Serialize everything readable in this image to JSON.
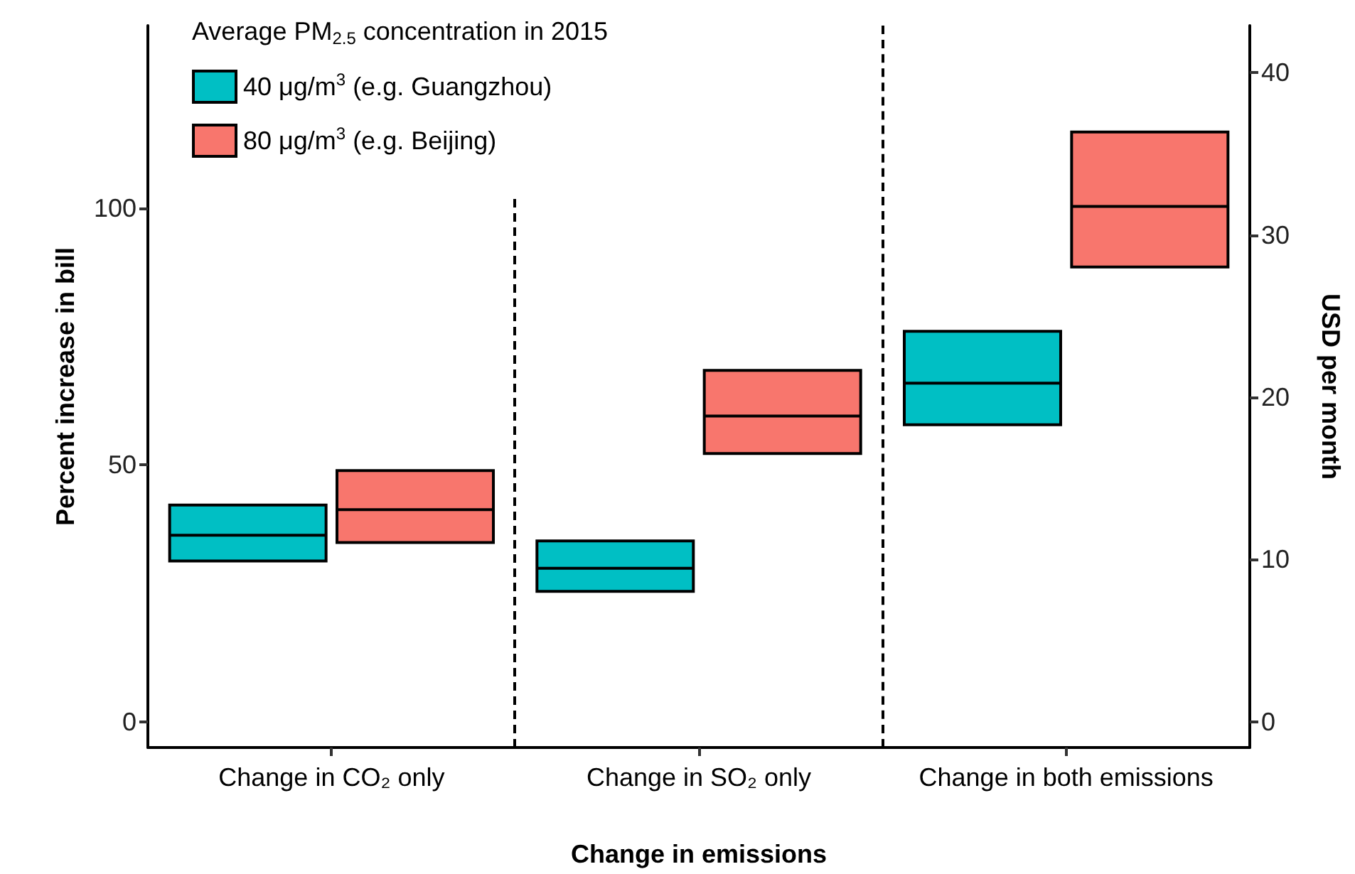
{
  "chart_data": {
    "type": "box",
    "legend_title": "Average PM$_{2.5}$ concentration in 2015",
    "xlabel": "Change in emissions",
    "ylabel": "Percent increase in bill",
    "y2label": "USD per month",
    "categories": [
      "Change in CO₂ only",
      "Change in SO₂ only",
      "Change in both emissions"
    ],
    "series": [
      {
        "name": "40 μg/m$^{3}$ (e.g. Guangzhou)",
        "color": "#00bfc4",
        "boxes": [
          {
            "low": 31.3,
            "q1": 31.3,
            "median": 36.3,
            "q3": 42.2,
            "high": 42.2
          },
          {
            "low": 25.4,
            "q1": 25.4,
            "median": 29.9,
            "q3": 35.2,
            "high": 35.2
          },
          {
            "low": 57.8,
            "q1": 57.8,
            "median": 65.9,
            "q3": 76,
            "high": 76
          }
        ]
      },
      {
        "name": "80 μg/m$^{3}$ (e.g. Beijing)",
        "color": "#f8766d",
        "boxes": [
          {
            "low": 34.9,
            "q1": 34.9,
            "median": 41.3,
            "q3": 48.9,
            "high": 48.9
          },
          {
            "low": 52.2,
            "q1": 52.2,
            "median": 59.5,
            "q3": 68.4,
            "high": 68.4
          },
          {
            "low": 88.5,
            "q1": 88.5,
            "median": 100.3,
            "q3": 114.8,
            "high": 114.8
          }
        ]
      }
    ],
    "ylim": [
      -5,
      135.5
    ],
    "yticks": [
      0,
      50,
      100
    ],
    "y2lim": [
      -1.58,
      42.9
    ],
    "y2ticks": [
      0,
      10,
      20,
      30,
      40
    ],
    "grid": false,
    "legend": "top left"
  }
}
